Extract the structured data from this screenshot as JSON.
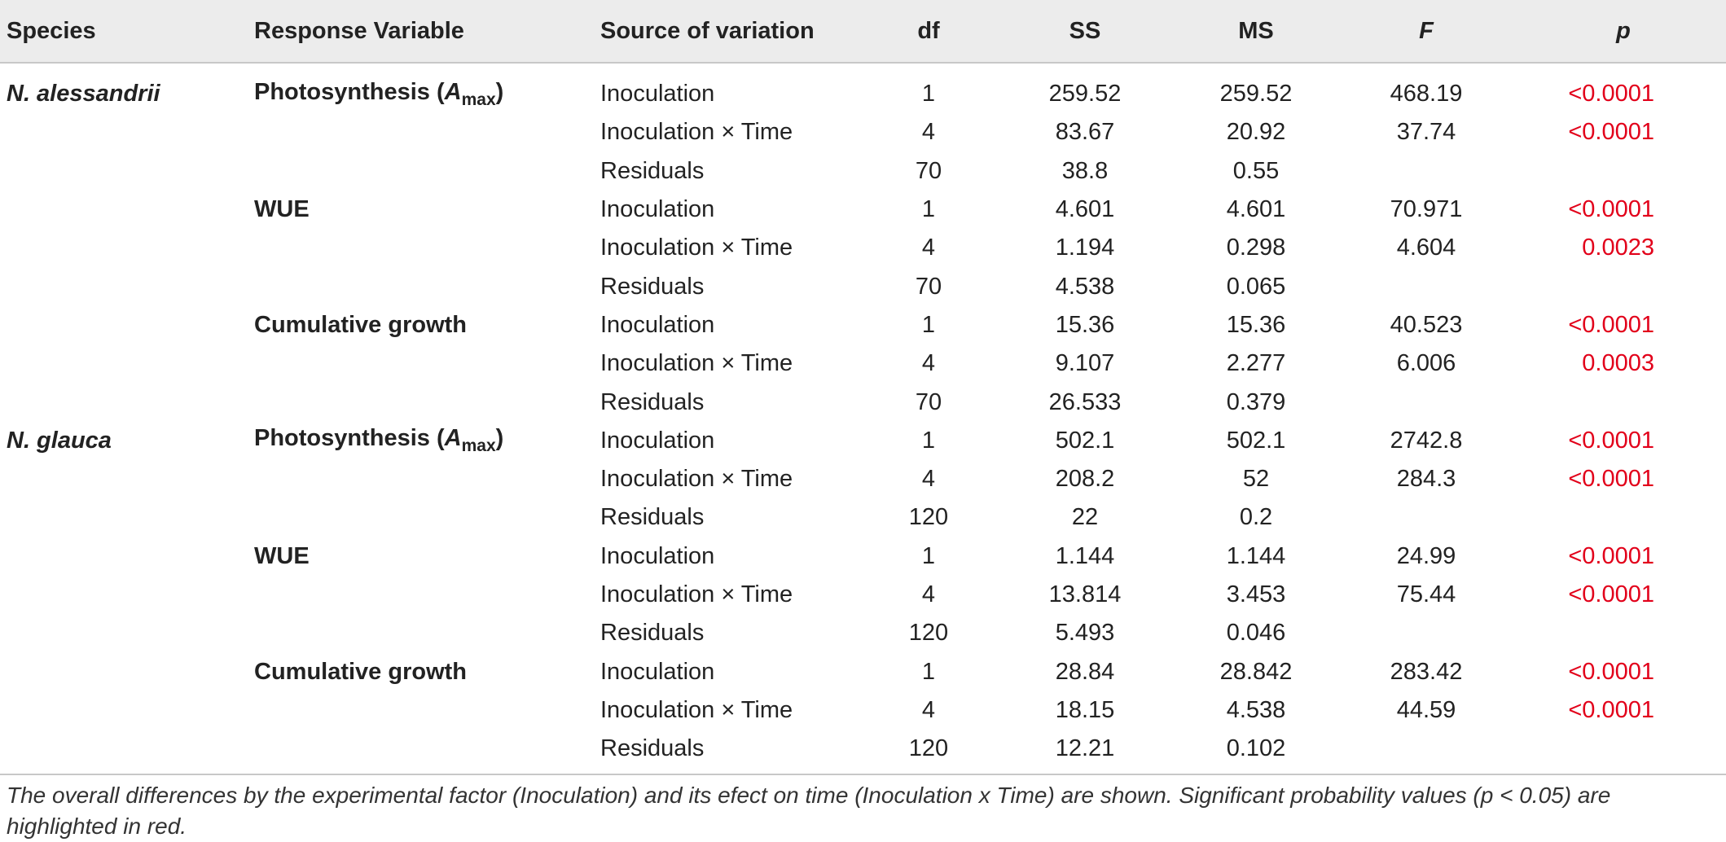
{
  "headers": {
    "species": "Species",
    "response": "Response Variable",
    "source": "Source of variation",
    "df": "df",
    "ss": "SS",
    "ms": "MS",
    "f": "F",
    "p": "p"
  },
  "rows": [
    {
      "species": "N. alessandrii",
      "response": "Photosynthesis (",
      "response_var": "A",
      "response_sub": "max",
      "response_end": ")",
      "source": "Inoculation",
      "df": "1",
      "ss": "259.52",
      "ms": "259.52",
      "f": "468.19",
      "p": "<0.0001"
    },
    {
      "species": "",
      "response": "",
      "source": "Inoculation × Time",
      "df": "4",
      "ss": "83.67",
      "ms": "20.92",
      "f": "37.74",
      "p": "<0.0001"
    },
    {
      "species": "",
      "response": "",
      "source": "Residuals",
      "df": "70",
      "ss": "38.8",
      "ms": "0.55",
      "f": "",
      "p": ""
    },
    {
      "species": "",
      "response": "WUE",
      "source": "Inoculation",
      "df": "1",
      "ss": "4.601",
      "ms": "4.601",
      "f": "70.971",
      "p": "<0.0001"
    },
    {
      "species": "",
      "response": "",
      "source": "Inoculation × Time",
      "df": "4",
      "ss": "1.194",
      "ms": "0.298",
      "f": "4.604",
      "p": "0.0023"
    },
    {
      "species": "",
      "response": "",
      "source": "Residuals",
      "df": "70",
      "ss": "4.538",
      "ms": "0.065",
      "f": "",
      "p": ""
    },
    {
      "species": "",
      "response": "Cumulative growth",
      "source": "Inoculation",
      "df": "1",
      "ss": "15.36",
      "ms": "15.36",
      "f": "40.523",
      "p": "<0.0001"
    },
    {
      "species": "",
      "response": "",
      "source": "Inoculation × Time",
      "df": "4",
      "ss": "9.107",
      "ms": "2.277",
      "f": "6.006",
      "p": "0.0003"
    },
    {
      "species": "",
      "response": "",
      "source": "Residuals",
      "df": "70",
      "ss": "26.533",
      "ms": "0.379",
      "f": "",
      "p": ""
    },
    {
      "species": "N. glauca",
      "response": "Photosynthesis (",
      "response_var": "A",
      "response_sub": "max",
      "response_end": ")",
      "source": "Inoculation",
      "df": "1",
      "ss": "502.1",
      "ms": "502.1",
      "f": "2742.8",
      "p": "<0.0001"
    },
    {
      "species": "",
      "response": "",
      "source": "Inoculation × Time",
      "df": "4",
      "ss": "208.2",
      "ms": "52",
      "f": "284.3",
      "p": "<0.0001"
    },
    {
      "species": "",
      "response": "",
      "source": "Residuals",
      "df": "120",
      "ss": "22",
      "ms": "0.2",
      "f": "",
      "p": ""
    },
    {
      "species": "",
      "response": "WUE",
      "source": "Inoculation",
      "df": "1",
      "ss": "1.144",
      "ms": "1.144",
      "f": "24.99",
      "p": "<0.0001"
    },
    {
      "species": "",
      "response": "",
      "source": "Inoculation × Time",
      "df": "4",
      "ss": "13.814",
      "ms": "3.453",
      "f": "75.44",
      "p": "<0.0001"
    },
    {
      "species": "",
      "response": "",
      "source": "Residuals",
      "df": "120",
      "ss": "5.493",
      "ms": "0.046",
      "f": "",
      "p": ""
    },
    {
      "species": "",
      "response": "Cumulative growth",
      "source": "Inoculation",
      "df": "1",
      "ss": "28.84",
      "ms": "28.842",
      "f": "283.42",
      "p": "<0.0001"
    },
    {
      "species": "",
      "response": "",
      "source": "Inoculation × Time",
      "df": "4",
      "ss": "18.15",
      "ms": "4.538",
      "f": "44.59",
      "p": "<0.0001"
    },
    {
      "species": "",
      "response": "",
      "source": "Residuals",
      "df": "120",
      "ss": "12.21",
      "ms": "0.102",
      "f": "",
      "p": ""
    }
  ],
  "caption": "The overall differences by the experimental factor (Inoculation) and its efect on time (Inoculation x Time) are shown. Significant probability values (p < 0.05) are highlighted in red.",
  "colors": {
    "significant": "#e2001a",
    "header_bg": "#ececec"
  }
}
